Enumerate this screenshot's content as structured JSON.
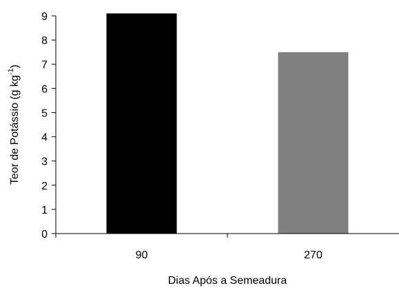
{
  "chart_data": {
    "type": "bar",
    "categories": [
      "90",
      "270"
    ],
    "values": [
      9.1,
      7.5
    ],
    "bar_colors": [
      "#000000",
      "#808080"
    ],
    "xlabel": "Dias Após a Semeadura",
    "ylabel": {
      "main": "Teor de Potássio (g kg",
      "superscript": "-1",
      "close": ")"
    },
    "ylim": [
      0,
      9
    ],
    "yticks": [
      0,
      1,
      2,
      3,
      4,
      5,
      6,
      7,
      8,
      9
    ],
    "grid": false,
    "legend": "none"
  }
}
